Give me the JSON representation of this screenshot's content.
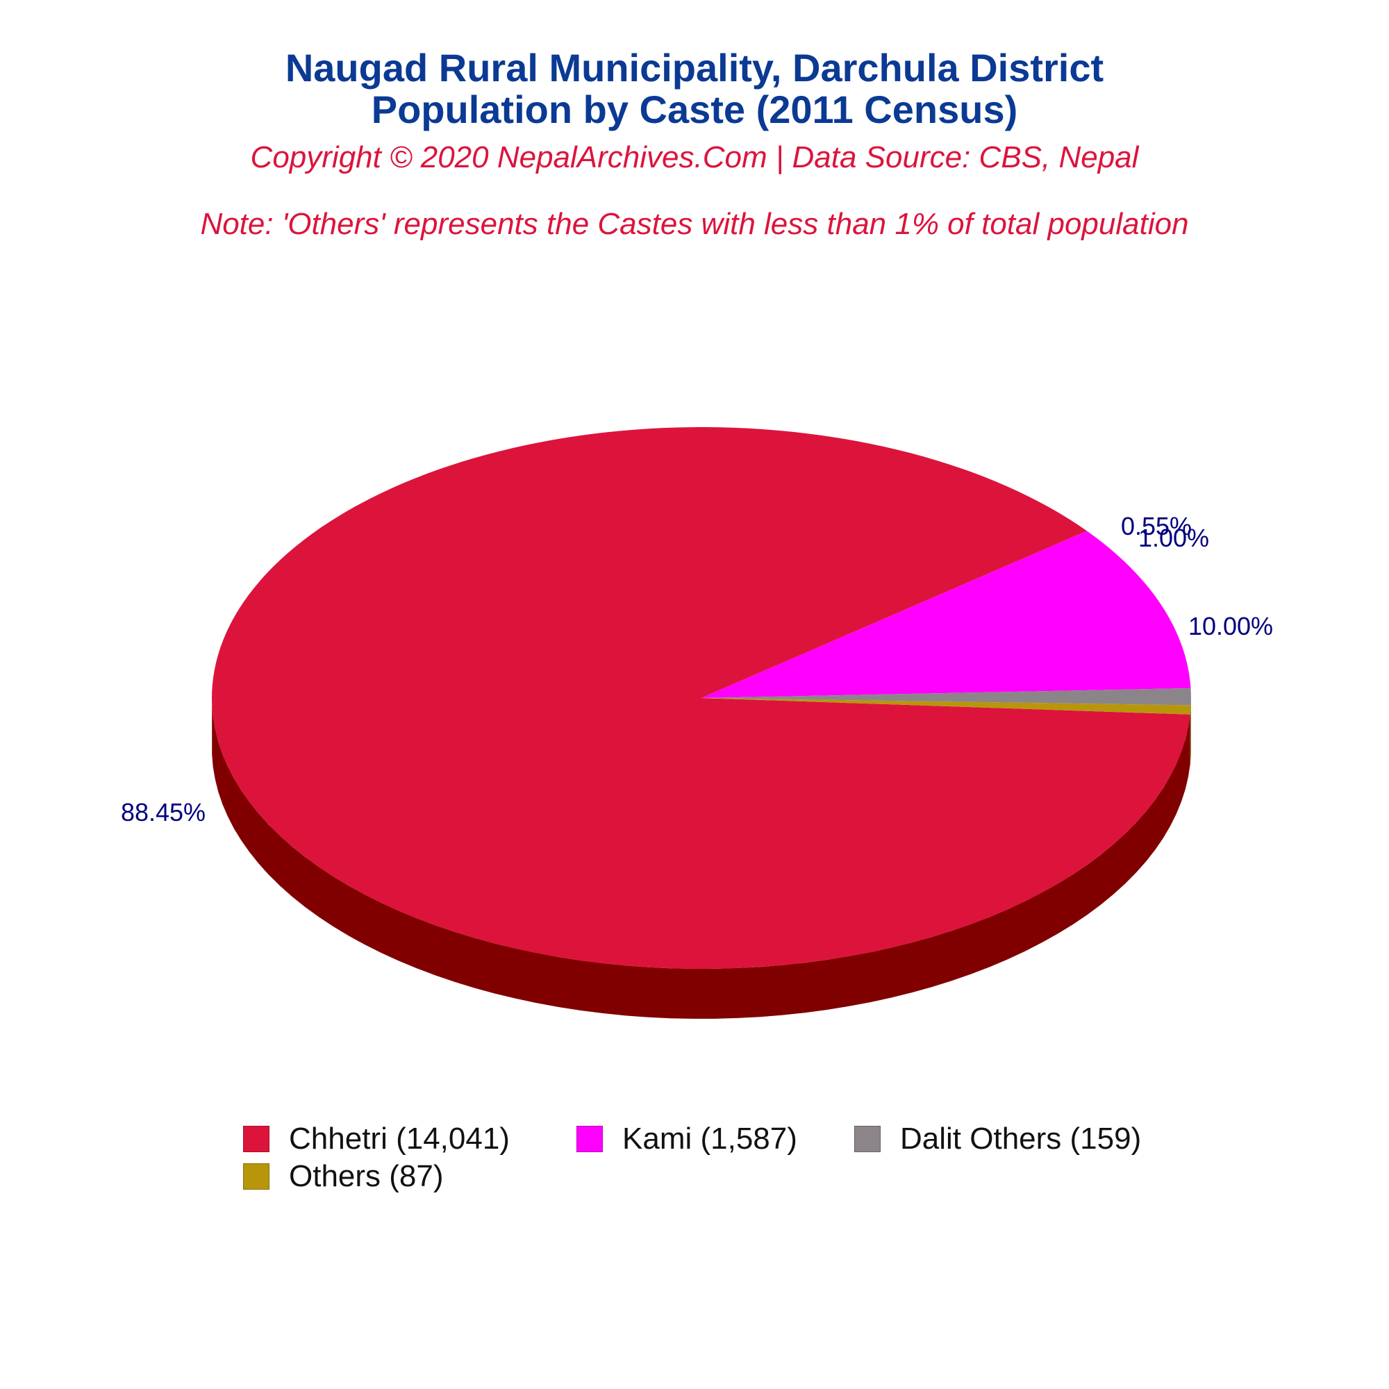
{
  "chart_data": {
    "type": "pie",
    "title": "Naugad Rural Municipality, Darchula District",
    "title_line2": "Population by Caste (2011 Census)",
    "subtitle": "Copyright © 2020 NepalArchives.Com | Data Source: CBS, Nepal",
    "note": "Note: 'Others' represents the Castes with less than 1% of total population",
    "legend_placement": "bottom",
    "slices": [
      {
        "label": "Chhetri (14,041)",
        "value": 14041,
        "percent_label": "88.45%",
        "color": "#dc143c",
        "side_color": "#800000"
      },
      {
        "label": "Kami (1,587)",
        "value": 1587,
        "percent_label": "10.00%",
        "color": "#ff00ff",
        "side_color": "#a000a0"
      },
      {
        "label": "Dalit Others (159)",
        "value": 159,
        "percent_label": "1.00%",
        "color": "#8b8589",
        "side_color": "#5a5558"
      },
      {
        "label": "Others (87)",
        "value": 87,
        "percent_label": "0.55%",
        "color": "#b8960c",
        "side_color": "#7a6408"
      }
    ]
  }
}
